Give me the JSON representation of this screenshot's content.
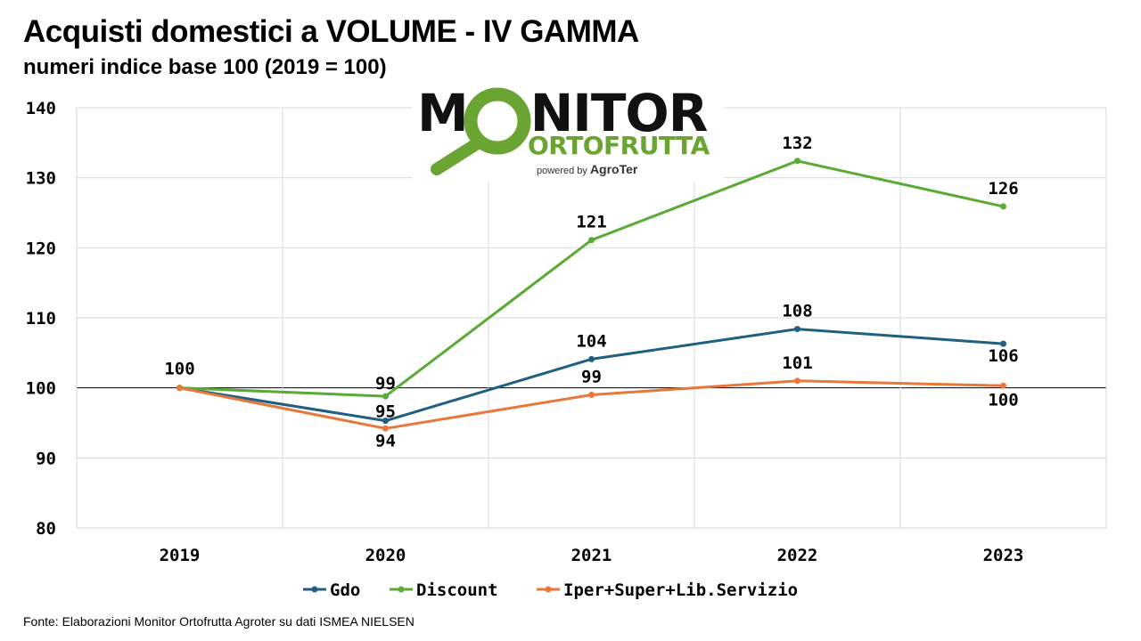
{
  "title": "Acquisti domestici a VOLUME - IV GAMMA",
  "subtitle": "numeri indice base 100 (2019 = 100)",
  "source": "Fonte: Elaborazioni Monitor Ortofrutta Agroter su dati ISMEA NIELSEN",
  "logo": {
    "main_before": "M",
    "main_after": "NITOR",
    "sub": "ORTOFRUTTA",
    "powered": "powered by",
    "brand": "AgroTer"
  },
  "colors": {
    "gdo": "#1f5f7f",
    "discount": "#5aaa36",
    "iper": "#e8773a",
    "logo_green": "#6aa533"
  },
  "chart_data": {
    "type": "line",
    "x": [
      "2019",
      "2020",
      "2021",
      "2022",
      "2023"
    ],
    "ylim": [
      80,
      140
    ],
    "yticks": [
      80,
      90,
      100,
      110,
      120,
      130,
      140
    ],
    "grid": true,
    "legend_position": "bottom",
    "reference_line": 100,
    "series": [
      {
        "name": "Gdo",
        "color": "#1f5f7f",
        "values": [
          100,
          95.3,
          104.1,
          108.4,
          106.3
        ],
        "labels": [
          "",
          "95",
          "104",
          "108",
          "106"
        ]
      },
      {
        "name": "Discount",
        "color": "#5aaa36",
        "values": [
          100,
          98.8,
          121.1,
          132.4,
          125.9
        ],
        "labels": [
          "",
          "99",
          "121",
          "132",
          "126"
        ]
      },
      {
        "name": "Iper+Super+Lib.Servizio",
        "color": "#e8773a",
        "values": [
          100,
          94.2,
          99.0,
          101.0,
          100.3
        ],
        "labels": [
          "100",
          "94",
          "99",
          "101",
          "100"
        ]
      }
    ]
  }
}
